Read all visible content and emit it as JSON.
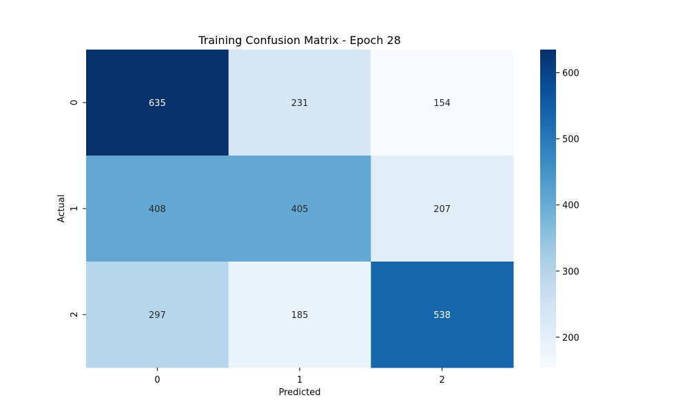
{
  "chart_data": {
    "type": "heatmap",
    "title": "Training Confusion Matrix - Epoch 28",
    "xlabel": "Predicted",
    "ylabel": "Actual",
    "x_categories": [
      "0",
      "1",
      "2"
    ],
    "y_categories": [
      "0",
      "1",
      "2"
    ],
    "values": [
      [
        635,
        231,
        154
      ],
      [
        408,
        405,
        207
      ],
      [
        297,
        185,
        538
      ]
    ],
    "colormap": "Blues",
    "colorbar": {
      "range": [
        154,
        635
      ],
      "ticks": [
        200,
        300,
        400,
        500,
        600
      ]
    },
    "colors": {
      "low": "#f7fbff",
      "high": "#08306b",
      "text_light": "#ffffff",
      "text_dark": "#262626"
    }
  }
}
